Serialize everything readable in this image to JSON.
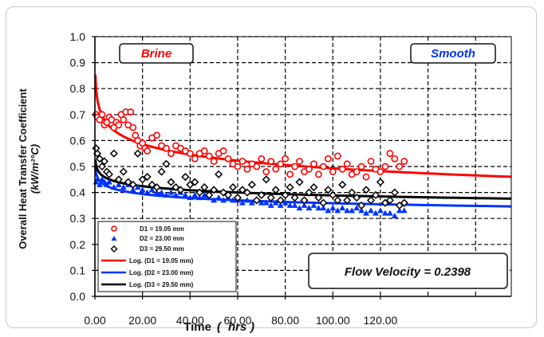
{
  "chart_data": {
    "type": "scatter",
    "xlabel": "Time",
    "xunit": "hrs",
    "ylabel_line1": "Overall Heat Transfer Coefficient",
    "ylabel_line2": "(kW/m²°C)",
    "xlim": [
      0,
      175
    ],
    "ylim": [
      0,
      1.0
    ],
    "xticks": [
      "0.00",
      "20.00",
      "40.00",
      "60.00",
      "80.00",
      "100.00",
      "120.00"
    ],
    "xtick_values": [
      0,
      20,
      40,
      60,
      80,
      100,
      120
    ],
    "yticks": [
      "0.0",
      "0.1",
      "0.2",
      "0.3",
      "0.4",
      "0.5",
      "0.6",
      "0.7",
      "0.8",
      "0.9",
      "1.0"
    ],
    "grid": true,
    "annotations": {
      "brine": "Brine",
      "smooth": "Smooth",
      "flow_velocity": "Flow Velocity = 0.2398"
    },
    "legend_position": "bottom-left",
    "colors": {
      "d1": "#ff0000",
      "d2": "#0033ff",
      "d3": "#000000"
    },
    "series": [
      {
        "name": "D1 = 19.05   mm",
        "marker": "circle",
        "color": "#ff0000",
        "x": [
          0.5,
          1,
          2,
          3,
          4,
          5,
          6,
          7,
          8,
          9,
          10,
          11,
          12,
          13,
          14,
          15,
          16,
          17,
          18,
          19,
          20,
          21,
          22,
          24,
          26,
          28,
          30,
          32,
          34,
          36,
          38,
          40,
          42,
          44,
          46,
          48,
          50,
          52,
          54,
          56,
          58,
          60,
          62,
          64,
          66,
          68,
          70,
          72,
          74,
          76,
          78,
          80,
          82,
          84,
          86,
          88,
          90,
          92,
          94,
          96,
          98,
          100,
          102,
          104,
          106,
          108,
          110,
          112,
          114,
          116,
          118,
          120,
          122,
          124,
          126,
          128,
          130
        ],
        "y": [
          0.7,
          0.69,
          0.68,
          0.7,
          0.66,
          0.67,
          0.69,
          0.68,
          0.65,
          0.67,
          0.66,
          0.7,
          0.68,
          0.71,
          0.66,
          0.71,
          0.65,
          0.62,
          0.6,
          0.58,
          0.59,
          0.57,
          0.56,
          0.61,
          0.62,
          0.58,
          0.57,
          0.55,
          0.58,
          0.57,
          0.56,
          0.55,
          0.53,
          0.55,
          0.56,
          0.54,
          0.52,
          0.55,
          0.56,
          0.53,
          0.51,
          0.5,
          0.52,
          0.49,
          0.51,
          0.5,
          0.53,
          0.48,
          0.52,
          0.49,
          0.51,
          0.53,
          0.47,
          0.5,
          0.52,
          0.48,
          0.49,
          0.51,
          0.47,
          0.5,
          0.53,
          0.48,
          0.54,
          0.49,
          0.51,
          0.47,
          0.48,
          0.5,
          0.46,
          0.52,
          0.49,
          0.48,
          0.5,
          0.55,
          0.53,
          0.5,
          0.52
        ]
      },
      {
        "name": "D2 = 23.00   mm",
        "marker": "triangle",
        "color": "#0033ff",
        "x": [
          0.5,
          1,
          2,
          3,
          4,
          5,
          6,
          8,
          10,
          12,
          14,
          16,
          18,
          20,
          22,
          24,
          26,
          28,
          30,
          32,
          34,
          36,
          38,
          40,
          42,
          44,
          46,
          48,
          50,
          52,
          54,
          56,
          58,
          60,
          62,
          64,
          66,
          68,
          70,
          72,
          74,
          76,
          78,
          80,
          82,
          84,
          86,
          88,
          90,
          92,
          94,
          96,
          98,
          100,
          102,
          104,
          106,
          108,
          110,
          112,
          114,
          116,
          118,
          120,
          122,
          124,
          126,
          128,
          130
        ],
        "y": [
          0.44,
          0.45,
          0.43,
          0.45,
          0.44,
          0.43,
          0.44,
          0.42,
          0.43,
          0.42,
          0.43,
          0.41,
          0.42,
          0.41,
          0.4,
          0.41,
          0.4,
          0.4,
          0.39,
          0.4,
          0.39,
          0.4,
          0.39,
          0.38,
          0.39,
          0.38,
          0.39,
          0.38,
          0.37,
          0.38,
          0.37,
          0.38,
          0.37,
          0.37,
          0.36,
          0.37,
          0.36,
          0.37,
          0.36,
          0.36,
          0.35,
          0.36,
          0.35,
          0.36,
          0.35,
          0.35,
          0.34,
          0.35,
          0.34,
          0.35,
          0.34,
          0.34,
          0.33,
          0.34,
          0.33,
          0.34,
          0.33,
          0.33,
          0.34,
          0.33,
          0.32,
          0.33,
          0.32,
          0.33,
          0.32,
          0.32,
          0.31,
          0.33,
          0.33
        ]
      },
      {
        "name": "D3 = 29.50   mm",
        "marker": "diamond",
        "color": "#000000",
        "x": [
          0.5,
          1,
          2,
          3,
          4,
          5,
          6,
          8,
          10,
          12,
          14,
          16,
          18,
          20,
          22,
          24,
          26,
          28,
          30,
          32,
          34,
          36,
          38,
          40,
          42,
          44,
          46,
          48,
          50,
          52,
          54,
          56,
          58,
          60,
          62,
          64,
          66,
          68,
          70,
          72,
          74,
          76,
          78,
          80,
          82,
          84,
          86,
          88,
          90,
          92,
          94,
          96,
          98,
          100,
          102,
          104,
          106,
          108,
          110,
          112,
          114,
          116,
          118,
          120,
          122,
          124,
          126,
          128,
          130
        ],
        "y": [
          0.57,
          0.55,
          0.53,
          0.5,
          0.52,
          0.48,
          0.47,
          0.55,
          0.45,
          0.48,
          0.44,
          0.43,
          0.55,
          0.45,
          0.46,
          0.43,
          0.42,
          0.48,
          0.51,
          0.44,
          0.42,
          0.41,
          0.46,
          0.43,
          0.44,
          0.4,
          0.42,
          0.39,
          0.41,
          0.47,
          0.4,
          0.39,
          0.42,
          0.38,
          0.41,
          0.4,
          0.43,
          0.37,
          0.39,
          0.45,
          0.38,
          0.41,
          0.37,
          0.39,
          0.42,
          0.38,
          0.44,
          0.37,
          0.4,
          0.42,
          0.38,
          0.36,
          0.41,
          0.39,
          0.37,
          0.43,
          0.37,
          0.4,
          0.38,
          0.35,
          0.41,
          0.37,
          0.39,
          0.44,
          0.36,
          0.37,
          0.4,
          0.35,
          0.36
        ]
      }
    ],
    "fits": [
      {
        "name": "Log. (D1 = 19.05   mm)",
        "color": "#ff0000",
        "a": 0.76,
        "b": -0.058,
        "x0": 0.2,
        "x1": 175
      },
      {
        "name": "Log. (D2 = 23.00   mm)",
        "color": "#0033ff",
        "a": 0.46,
        "b": -0.022,
        "x0": 0.2,
        "x1": 175
      },
      {
        "name": "Log. (D3 = 29.50   mm)",
        "color": "#000000",
        "a": 0.49,
        "b": -0.022,
        "x0": 0.2,
        "x1": 175
      }
    ]
  }
}
